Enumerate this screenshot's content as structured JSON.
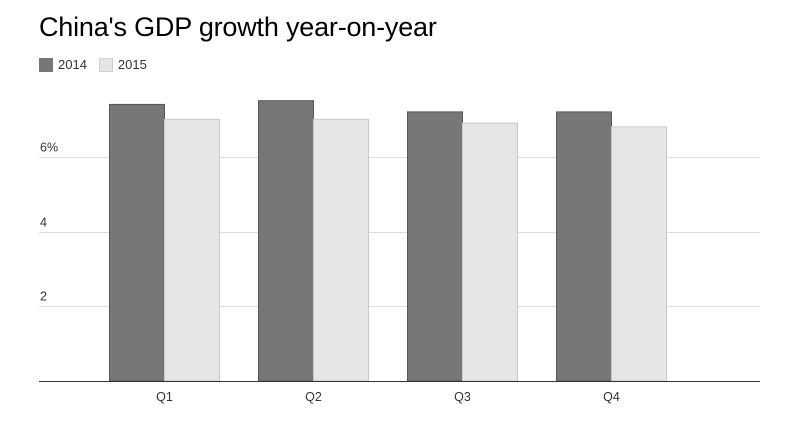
{
  "chart_data": {
    "type": "bar",
    "title": "China's GDP growth year-on-year",
    "categories": [
      "Q1",
      "Q2",
      "Q3",
      "Q4"
    ],
    "series": [
      {
        "name": "2014",
        "values": [
          7.4,
          7.5,
          7.2,
          7.2
        ],
        "color": "#777777"
      },
      {
        "name": "2015",
        "values": [
          7.0,
          7.0,
          6.9,
          6.8
        ],
        "color": "#e6e6e6"
      }
    ],
    "y_ticks": [
      {
        "value": 2,
        "label": "2"
      },
      {
        "value": 4,
        "label": "4"
      },
      {
        "value": 6,
        "label": "6%"
      }
    ],
    "ylim": [
      0,
      8
    ],
    "grid": true,
    "legend_position": "top-left"
  }
}
